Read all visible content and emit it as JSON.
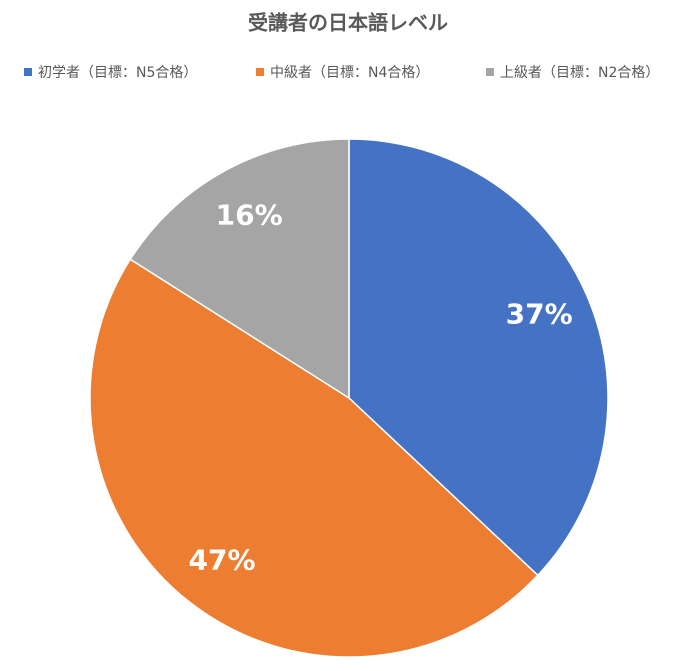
{
  "chart_data": {
    "type": "pie",
    "title": "受講者の日本語レベル",
    "categories": [
      "初学者（目標：N5合格）",
      "中級者（目標：N4合格）",
      "上級者（目標：N2合格）"
    ],
    "values": [
      37,
      47,
      16
    ],
    "value_labels": [
      "37%",
      "47%",
      "16%"
    ],
    "colors": [
      "#4472c4",
      "#ed7d31",
      "#a5a5a5"
    ],
    "legend": "top"
  }
}
